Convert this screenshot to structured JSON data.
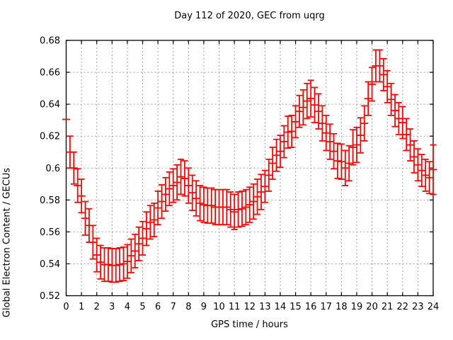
{
  "chart_data": {
    "type": "scatter",
    "style": "points-with-yerrorbars",
    "title": "Day 112 of 2020, GEC from uqrg",
    "xlabel": "GPS time / hours",
    "ylabel": "Global Electron Content / GECUs",
    "xlim": [
      0,
      24
    ],
    "ylim": [
      0.52,
      0.68
    ],
    "grid": true,
    "legend": "none",
    "series_color": "#ff0000",
    "grid_color": "#a0a0a0",
    "frame_color": "#000000",
    "x_ticks": [
      0,
      1,
      2,
      3,
      4,
      5,
      6,
      7,
      8,
      9,
      10,
      11,
      12,
      13,
      14,
      15,
      16,
      17,
      18,
      19,
      20,
      21,
      22,
      23,
      24
    ],
    "x_tick_labels": [
      "0",
      "1",
      "2",
      "3",
      "4",
      "5",
      "6",
      "7",
      "8",
      "9",
      "10",
      "11",
      "12",
      "13",
      "14",
      "15",
      "16",
      "17",
      "18",
      "19",
      "20",
      "21",
      "22",
      "23",
      "24"
    ],
    "y_ticks": [
      0.52,
      0.54,
      0.56,
      0.58,
      0.6,
      0.62,
      0.64,
      0.66,
      0.68
    ],
    "y_tick_labels": [
      "0.52",
      "0.54",
      "0.56",
      "0.58",
      "0.6",
      "0.62",
      "0.64",
      "0.66",
      "0.68"
    ],
    "x": [
      0,
      0.25,
      0.5,
      0.75,
      1,
      1.25,
      1.5,
      1.75,
      2,
      2.25,
      2.5,
      2.75,
      3,
      3.25,
      3.5,
      3.75,
      4,
      4.25,
      4.5,
      4.75,
      5,
      5.25,
      5.5,
      5.75,
      6,
      6.25,
      6.5,
      6.75,
      7,
      7.25,
      7.5,
      7.75,
      8,
      8.25,
      8.5,
      8.75,
      9,
      9.25,
      9.5,
      9.75,
      10,
      10.25,
      10.5,
      10.75,
      11,
      11.25,
      11.5,
      11.75,
      12,
      12.25,
      12.5,
      12.75,
      13,
      13.25,
      13.5,
      13.75,
      14,
      14.25,
      14.5,
      14.75,
      15,
      15.25,
      15.5,
      15.75,
      16,
      16.25,
      16.5,
      16.75,
      17,
      17.25,
      17.5,
      17.75,
      18,
      18.25,
      18.5,
      18.75,
      19,
      19.25,
      19.5,
      19.75,
      20,
      20.25,
      20.5,
      20.75,
      21,
      21.25,
      21.5,
      21.75,
      22,
      22.25,
      22.5,
      22.75,
      23,
      23.25,
      23.5,
      23.75,
      24
    ],
    "y": [
      0.6305,
      0.61,
      0.6,
      0.589,
      0.5825,
      0.5685,
      0.564,
      0.5535,
      0.5455,
      0.541,
      0.5395,
      0.5395,
      0.539,
      0.539,
      0.5395,
      0.54,
      0.5415,
      0.545,
      0.548,
      0.5525,
      0.556,
      0.562,
      0.566,
      0.5675,
      0.575,
      0.579,
      0.5835,
      0.587,
      0.589,
      0.591,
      0.5945,
      0.5935,
      0.589,
      0.5845,
      0.581,
      0.578,
      0.577,
      0.5765,
      0.5765,
      0.5755,
      0.5755,
      0.5755,
      0.5755,
      0.574,
      0.5725,
      0.574,
      0.5745,
      0.5755,
      0.577,
      0.579,
      0.582,
      0.585,
      0.5885,
      0.5955,
      0.603,
      0.608,
      0.6105,
      0.6165,
      0.6225,
      0.623,
      0.629,
      0.6355,
      0.638,
      0.642,
      0.6435,
      0.6395,
      0.6355,
      0.628,
      0.622,
      0.6165,
      0.6105,
      0.6045,
      0.604,
      0.6,
      0.603,
      0.613,
      0.6145,
      0.6205,
      0.628,
      0.6435,
      0.6525,
      0.664,
      0.664,
      0.6585,
      0.651,
      0.643,
      0.636,
      0.631,
      0.6285,
      0.621,
      0.6145,
      0.607,
      0.602,
      0.5985,
      0.5955,
      0.594,
      0.599
    ],
    "yerr": [
      0,
      0.01,
      0.01,
      0.0105,
      0.0105,
      0.0105,
      0.0105,
      0.0105,
      0.0105,
      0.0105,
      0.0105,
      0.0105,
      0.0105,
      0.0105,
      0.0105,
      0.0105,
      0.0105,
      0.0105,
      0.0105,
      0.0105,
      0.0105,
      0.0105,
      0.0105,
      0.0105,
      0.0105,
      0.0105,
      0.0105,
      0.0105,
      0.0105,
      0.011,
      0.011,
      0.011,
      0.011,
      0.011,
      0.011,
      0.011,
      0.011,
      0.011,
      0.011,
      0.011,
      0.011,
      0.011,
      0.011,
      0.011,
      0.011,
      0.011,
      0.011,
      0.011,
      0.011,
      0.011,
      0.011,
      0.011,
      0.01,
      0.01,
      0.01,
      0.01,
      0.01,
      0.01,
      0.01,
      0.01,
      0.01,
      0.01,
      0.011,
      0.011,
      0.0115,
      0.011,
      0.011,
      0.011,
      0.011,
      0.011,
      0.011,
      0.011,
      0.011,
      0.011,
      0.011,
      0.011,
      0.011,
      0.011,
      0.011,
      0.0105,
      0.0105,
      0.01,
      0.01,
      0.01,
      0.01,
      0.01,
      0.01,
      0.01,
      0.01,
      0.01,
      0.01,
      0.01,
      0.01,
      0.01,
      0.01,
      0.01,
      0.0155
    ]
  }
}
